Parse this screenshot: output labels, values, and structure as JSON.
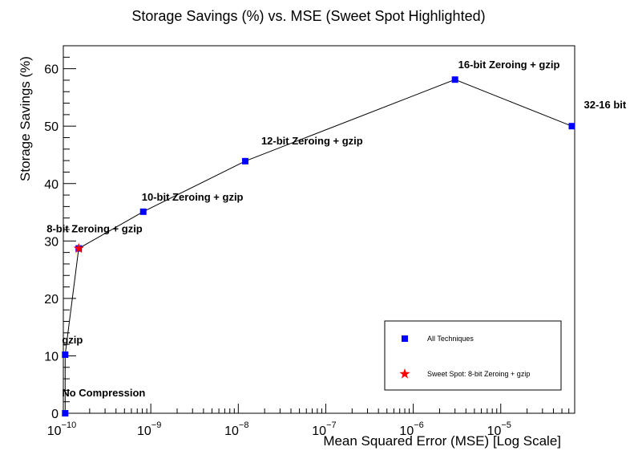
{
  "chart_data": {
    "type": "scatter",
    "title": "Storage Savings (%) vs. MSE (Sweet Spot Highlighted)",
    "xlabel": "Mean Squared Error (MSE) [Log Scale]",
    "ylabel": "Storage Savings (%)",
    "x_scale": "log",
    "xlim": [
      1e-10,
      7e-05
    ],
    "ylim": [
      0,
      64
    ],
    "x_ticks": [
      {
        "base": "10",
        "exp": "−10",
        "value": 1e-10
      },
      {
        "base": "10",
        "exp": "−9",
        "value": 1e-09
      },
      {
        "base": "10",
        "exp": "−8",
        "value": 1e-08
      },
      {
        "base": "10",
        "exp": "−7",
        "value": 1e-07
      },
      {
        "base": "10",
        "exp": "−6",
        "value": 1e-06
      },
      {
        "base": "10",
        "exp": "−5",
        "value": 1e-05
      }
    ],
    "y_ticks": [
      "0",
      "10",
      "20",
      "30",
      "40",
      "50",
      "60"
    ],
    "series": [
      {
        "name": "All Techniques",
        "marker": "square",
        "color": "#0000ff",
        "points": [
          {
            "label": "No Compression",
            "x": 1.05e-10,
            "y": 0
          },
          {
            "label": "gzip",
            "x": 1.05e-10,
            "y": 10.2
          },
          {
            "label": "8-bit Zeroing + gzip",
            "x": 1.5e-10,
            "y": 28.7
          },
          {
            "label": "10-bit Zeroing + gzip",
            "x": 8.2e-10,
            "y": 35.1
          },
          {
            "label": "12-bit Zeroing + gzip",
            "x": 1.2e-08,
            "y": 43.9
          },
          {
            "label": "16-bit Zeroing + gzip",
            "x": 3e-06,
            "y": 58.1
          },
          {
            "label": "32-16 bit",
            "x": 6.5e-05,
            "y": 50.0
          }
        ]
      },
      {
        "name": "Sweet Spot: 8-bit Zeroing + gzip",
        "marker": "star",
        "color": "#ff0000",
        "points": [
          {
            "x": 1.5e-10,
            "y": 28.7
          }
        ]
      }
    ],
    "legend_position": "bottom-right",
    "line_color": "#000000"
  }
}
